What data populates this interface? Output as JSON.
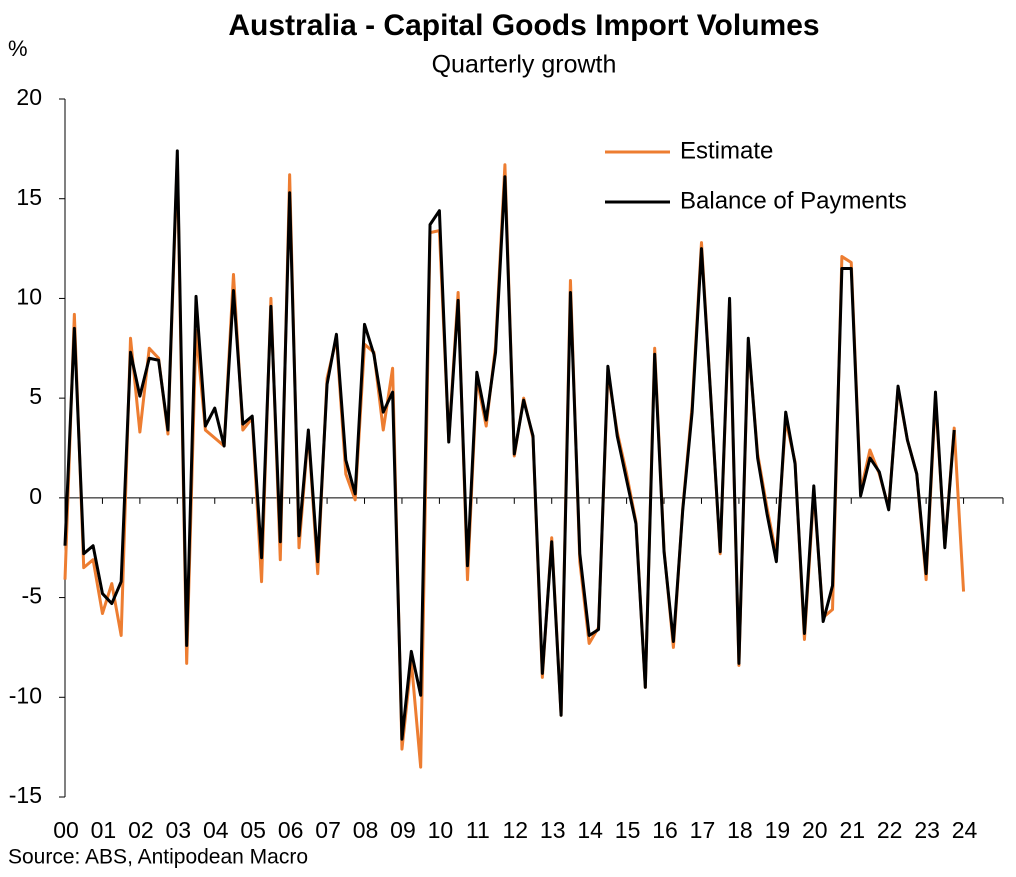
{
  "chart_data": {
    "type": "line",
    "title": "Australia - Capital Goods Import Volumes",
    "subtitle": "Quarterly growth",
    "y_label": "%",
    "source": "Source: ABS, Antipodean Macro",
    "categories": [
      "00",
      null,
      null,
      null,
      "01",
      null,
      null,
      null,
      "02",
      null,
      null,
      null,
      "03",
      null,
      null,
      null,
      "04",
      null,
      null,
      null,
      "05",
      null,
      null,
      null,
      "06",
      null,
      null,
      null,
      "07",
      null,
      null,
      null,
      "08",
      null,
      null,
      null,
      "09",
      null,
      null,
      null,
      "10",
      null,
      null,
      null,
      "11",
      null,
      null,
      null,
      "12",
      null,
      null,
      null,
      "13",
      null,
      null,
      null,
      "14",
      null,
      null,
      null,
      "15",
      null,
      null,
      null,
      "16",
      null,
      null,
      null,
      "17",
      null,
      null,
      null,
      "18",
      null,
      null,
      null,
      "19",
      null,
      null,
      null,
      "20",
      null,
      null,
      null,
      "21",
      null,
      null,
      null,
      "22",
      null,
      null,
      null,
      "23",
      null,
      null,
      null,
      "24"
    ],
    "series": [
      {
        "name": "Estimate",
        "color": "#ed7d31",
        "values": [
          -4.1,
          9.2,
          -3.5,
          -3.1,
          -5.8,
          -4.3,
          -6.9,
          8.0,
          3.3,
          7.5,
          7.0,
          3.2,
          17.0,
          -8.3,
          8.4,
          3.4,
          3.0,
          2.6,
          11.2,
          3.4,
          4.0,
          -4.2,
          10.0,
          -3.1,
          16.2,
          -2.5,
          3.3,
          -3.8,
          6.0,
          8.0,
          1.2,
          -0.1,
          7.7,
          7.3,
          3.4,
          6.5,
          -12.6,
          -8.2,
          -13.5,
          13.3,
          13.4,
          2.9,
          10.3,
          -4.1,
          6.0,
          3.6,
          7.6,
          16.7,
          2.1,
          5.0,
          3.0,
          -9.0,
          -2.0,
          -10.9,
          10.9,
          -3.2,
          -7.3,
          -6.5,
          6.3,
          3.3,
          1.2,
          -1.2,
          -9.5,
          7.5,
          -2.6,
          -7.5,
          -0.5,
          4.6,
          12.8,
          5.0,
          -2.8,
          9.8,
          -8.4,
          7.8,
          2.2,
          -0.5,
          -2.9,
          3.9,
          1.8,
          -7.1,
          0.3,
          -6.0,
          -5.6,
          12.1,
          11.8,
          0.3,
          2.4,
          1.2,
          -0.5,
          5.5,
          2.9,
          1.2,
          -4.1,
          5.0,
          -2.4,
          3.5,
          -4.7
        ]
      },
      {
        "name": "Balance of Payments",
        "color": "#000000",
        "values": [
          -2.4,
          8.5,
          -2.8,
          -2.4,
          -4.8,
          -5.3,
          -4.2,
          7.3,
          5.1,
          7.0,
          6.9,
          3.4,
          17.4,
          -7.4,
          10.1,
          3.6,
          4.5,
          2.6,
          10.4,
          3.7,
          4.1,
          -3.0,
          9.6,
          -2.2,
          15.3,
          -1.9,
          3.4,
          -3.2,
          5.7,
          8.2,
          1.9,
          0.2,
          8.7,
          7.2,
          4.3,
          5.3,
          -12.1,
          -7.7,
          -9.9,
          13.7,
          14.4,
          2.8,
          9.9,
          -3.4,
          6.3,
          3.9,
          7.3,
          16.1,
          2.2,
          4.9,
          3.1,
          -8.8,
          -2.2,
          -10.9,
          10.3,
          -2.8,
          -6.9,
          -6.6,
          6.6,
          3.1,
          0.9,
          -1.3,
          -9.5,
          7.2,
          -2.7,
          -7.2,
          -0.6,
          4.3,
          12.5,
          5.0,
          -2.7,
          10.0,
          -8.3,
          8.0,
          2.0,
          -0.8,
          -3.2,
          4.3,
          1.7,
          -6.8,
          0.6,
          -6.2,
          -4.4,
          11.5,
          11.5,
          0.1,
          2.0,
          1.3,
          -0.6,
          5.6,
          2.9,
          1.2,
          -3.8,
          5.3,
          -2.5,
          3.4,
          null
        ]
      }
    ],
    "ylim": [
      -15,
      20
    ],
    "yticks": [
      -15,
      -10,
      -5,
      0,
      5,
      10,
      15,
      20
    ],
    "legend": "upper right",
    "grid": false
  }
}
